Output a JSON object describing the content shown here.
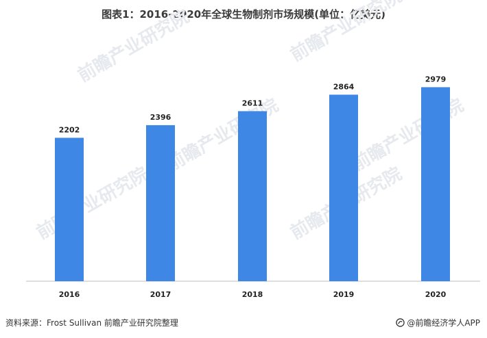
{
  "chart_data": {
    "type": "bar",
    "title": "图表1：2016-2020年全球生物制剂市场规模(单位：亿美元)",
    "xlabel": "",
    "ylabel": "",
    "categories": [
      "2016",
      "2017",
      "2018",
      "2019",
      "2020"
    ],
    "values": [
      2202,
      2396,
      2611,
      2864,
      2979
    ],
    "ylim": [
      0,
      3950
    ],
    "grid": false,
    "bar_color": "#3f87e4"
  },
  "footer": {
    "source": "资料来源：Frost Sullivan 前瞻产业研究院整理",
    "brand": "@前瞻经济学人APP"
  },
  "watermark": {
    "text": "前瞻产业研究院"
  }
}
